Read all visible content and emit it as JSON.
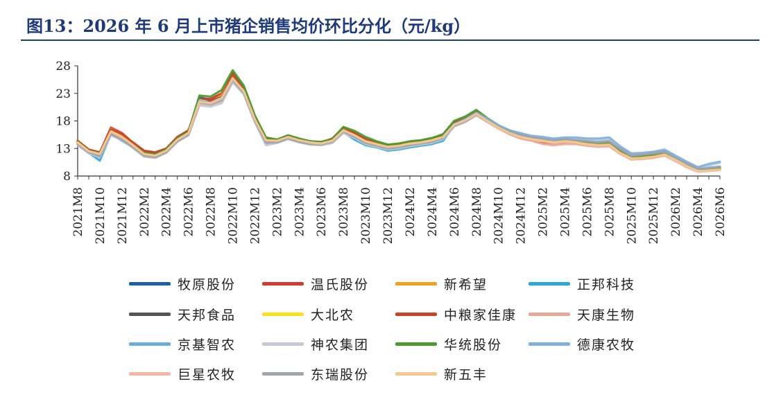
{
  "page": {
    "title": "图13：2026 年 6 月上市猪企销售均价环比分化（元/kg）"
  },
  "chart_data": {
    "type": "line",
    "ylim": [
      8,
      28
    ],
    "yticks": [
      8,
      13,
      18,
      23,
      28
    ],
    "xticks": [
      "2021M8",
      "2021M10",
      "2021M12",
      "2022M2",
      "2022M4",
      "2022M6",
      "2022M8",
      "2022M10",
      "2022M12",
      "2023M2",
      "2023M4",
      "2023M6",
      "2023M8",
      "2023M10",
      "2023M12",
      "2024M2",
      "2024M4",
      "2024M6",
      "2024M8",
      "2024M10",
      "2024M12",
      "2025M2",
      "2025M4",
      "2025M6",
      "2025M8",
      "2025M10",
      "2025M12",
      "2026M2",
      "2026M4",
      "2026M6"
    ],
    "x": [
      "2021M8",
      "2021M9",
      "2021M10",
      "2021M11",
      "2021M12",
      "2022M1",
      "2022M2",
      "2022M3",
      "2022M4",
      "2022M5",
      "2022M6",
      "2022M7",
      "2022M8",
      "2022M9",
      "2022M10",
      "2022M11",
      "2022M12",
      "2023M1",
      "2023M2",
      "2023M3",
      "2023M4",
      "2023M5",
      "2023M6",
      "2023M7",
      "2023M8",
      "2023M9",
      "2023M10",
      "2023M11",
      "2023M12",
      "2024M1",
      "2024M2",
      "2024M3",
      "2024M4",
      "2024M5",
      "2024M6",
      "2024M7",
      "2024M8",
      "2024M9",
      "2024M10",
      "2024M11",
      "2024M12",
      "2025M1",
      "2025M2",
      "2025M3",
      "2025M4",
      "2025M5",
      "2025M6",
      "2025M7",
      "2025M8",
      "2025M9",
      "2025M10",
      "2025M11",
      "2025M12",
      "2026M1",
      "2026M2",
      "2026M3",
      "2026M4",
      "2026M5",
      "2026M6"
    ],
    "series": [
      {
        "name": "牧原股份",
        "color": "#1f5fa8",
        "values": [
          14.2,
          12.6,
          12.0,
          16.2,
          15.2,
          13.6,
          12.2,
          12.0,
          12.8,
          14.8,
          16.0,
          22.3,
          21.8,
          22.8,
          26.6,
          23.8,
          18.6,
          14.8,
          14.5,
          15.2,
          14.6,
          14.2,
          14.1,
          14.6,
          16.6,
          15.0,
          13.9,
          13.6,
          13.0,
          13.1,
          13.6,
          13.9,
          14.3,
          15.0,
          17.6,
          18.4,
          19.6,
          18.4,
          17.2,
          16.2,
          15.6,
          15.0,
          14.8,
          14.5,
          14.8,
          14.6,
          14.2,
          14.0,
          14.2,
          12.8,
          11.6,
          11.8,
          11.9,
          12.4,
          11.2,
          10.2,
          9.0,
          9.2,
          9.4
        ]
      },
      {
        "name": "温氏股份",
        "color": "#d63a2f",
        "values": [
          14.3,
          12.7,
          12.2,
          16.8,
          15.8,
          14.0,
          12.5,
          12.2,
          12.9,
          15.0,
          16.2,
          22.0,
          22.0,
          23.0,
          26.8,
          24.0,
          18.8,
          14.9,
          14.6,
          15.3,
          14.7,
          14.2,
          14.1,
          14.8,
          16.8,
          15.9,
          14.8,
          14.1,
          13.5,
          13.7,
          14.1,
          14.3,
          14.7,
          15.4,
          17.8,
          18.6,
          19.8,
          18.3,
          17.0,
          16.0,
          15.2,
          14.8,
          14.6,
          14.3,
          14.5,
          14.3,
          14.0,
          13.9,
          14.0,
          12.6,
          11.5,
          11.6,
          11.8,
          12.2,
          11.1,
          10.0,
          9.1,
          9.1,
          9.3
        ]
      },
      {
        "name": "新希望",
        "color": "#f0a11f",
        "values": [
          14.0,
          12.4,
          11.9,
          16.6,
          15.5,
          13.8,
          12.1,
          11.8,
          12.6,
          14.6,
          15.8,
          21.6,
          21.5,
          22.6,
          26.0,
          23.5,
          18.5,
          14.6,
          14.4,
          15.1,
          14.5,
          14.1,
          14.0,
          14.5,
          16.5,
          15.6,
          14.5,
          13.9,
          13.4,
          13.6,
          14.0,
          14.2,
          14.6,
          15.3,
          17.4,
          18.2,
          19.4,
          18.1,
          16.8,
          15.8,
          15.1,
          14.6,
          14.4,
          14.1,
          14.3,
          14.1,
          13.8,
          13.7,
          13.8,
          12.4,
          11.3,
          11.5,
          11.6,
          12.0,
          11.0,
          9.9,
          8.9,
          9.0,
          9.2
        ]
      },
      {
        "name": "正邦科技",
        "color": "#29a9d8",
        "values": [
          13.8,
          12.2,
          10.8,
          15.6,
          14.4,
          13.2,
          11.8,
          11.5,
          12.4,
          14.4,
          15.6,
          21.8,
          21.2,
          22.0,
          25.6,
          23.2,
          18.0,
          13.8,
          14.2,
          14.9,
          14.3,
          13.9,
          13.8,
          14.2,
          16.0,
          14.6,
          13.6,
          13.2,
          12.6,
          12.8,
          13.2,
          13.5,
          13.8,
          14.4,
          17.2,
          18.0,
          19.2,
          18.0,
          16.9,
          15.9,
          15.2,
          14.8,
          14.5,
          14.2,
          14.4,
          14.2,
          13.9,
          13.7,
          13.9,
          12.5,
          11.4,
          11.5,
          11.7,
          12.1,
          11.0,
          9.9,
          8.9,
          9.0,
          9.2
        ]
      },
      {
        "name": "天邦食品",
        "color": "#555555",
        "values": [
          14.1,
          12.5,
          11.8,
          15.9,
          14.9,
          13.5,
          12.0,
          11.7,
          12.5,
          14.5,
          15.7,
          21.9,
          21.4,
          22.5,
          26.2,
          23.6,
          18.4,
          14.5,
          14.3,
          15.0,
          14.4,
          14.0,
          13.9,
          14.4,
          16.4,
          15.4,
          14.3,
          13.8,
          13.2,
          13.4,
          13.8,
          14.0,
          14.4,
          15.1,
          17.5,
          18.3,
          19.5,
          18.2,
          17.0,
          16.0,
          15.3,
          14.8,
          14.6,
          14.3,
          14.5,
          14.3,
          14.0,
          13.8,
          14.0,
          12.6,
          11.4,
          11.6,
          11.8,
          12.2,
          11.1,
          10.0,
          9.0,
          9.1,
          9.3
        ]
      },
      {
        "name": "大北农",
        "color": "#f7e21b",
        "values": [
          14.0,
          12.4,
          11.7,
          16.4,
          15.3,
          13.7,
          12.1,
          11.8,
          12.6,
          14.6,
          15.8,
          21.8,
          21.4,
          22.6,
          26.3,
          23.7,
          18.5,
          14.6,
          14.4,
          15.1,
          14.5,
          14.1,
          14.0,
          14.5,
          16.5,
          15.5,
          14.4,
          13.9,
          13.3,
          13.5,
          13.9,
          14.1,
          14.5,
          15.2,
          17.5,
          18.3,
          19.5,
          18.2,
          16.9,
          15.9,
          15.2,
          14.7,
          14.5,
          14.2,
          14.4,
          14.2,
          13.9,
          13.7,
          13.9,
          12.5,
          11.3,
          11.5,
          11.7,
          12.1,
          11.0,
          9.9,
          8.9,
          9.0,
          9.2
        ]
      },
      {
        "name": "中粮家佳康",
        "color": "#c8452a",
        "values": [
          14.4,
          12.8,
          12.3,
          16.5,
          15.6,
          14.1,
          12.6,
          12.3,
          13.0,
          15.1,
          16.3,
          21.2,
          21.6,
          22.4,
          26.4,
          23.9,
          18.7,
          14.8,
          14.6,
          15.3,
          14.7,
          14.3,
          14.1,
          14.7,
          16.7,
          15.8,
          14.7,
          14.1,
          13.6,
          13.8,
          14.2,
          14.4,
          14.8,
          15.5,
          17.7,
          18.5,
          19.7,
          18.2,
          16.7,
          15.6,
          14.9,
          14.5,
          14.1,
          13.9,
          14.1,
          14.0,
          13.7,
          13.6,
          13.7,
          12.3,
          11.2,
          11.3,
          11.5,
          11.9,
          10.9,
          9.8,
          8.9,
          9.0,
          9.2
        ]
      },
      {
        "name": "天康生物",
        "color": "#e8a896",
        "values": [
          13.9,
          12.3,
          11.8,
          15.8,
          14.8,
          13.4,
          11.6,
          11.4,
          12.3,
          14.3,
          15.5,
          21.0,
          20.8,
          21.4,
          25.2,
          23.0,
          18.2,
          14.3,
          14.2,
          14.9,
          14.3,
          13.9,
          13.8,
          14.2,
          16.1,
          15.2,
          14.1,
          13.6,
          13.1,
          13.3,
          13.6,
          13.9,
          14.2,
          14.9,
          17.0,
          17.9,
          19.0,
          17.8,
          16.6,
          15.6,
          14.8,
          14.4,
          13.8,
          13.6,
          13.8,
          13.8,
          13.5,
          13.3,
          13.4,
          12.0,
          11.0,
          11.1,
          11.3,
          11.7,
          10.7,
          9.6,
          8.8,
          8.9,
          9.1
        ]
      },
      {
        "name": "京基智农",
        "color": "#6aaee0",
        "values": [
          13.7,
          12.2,
          11.5,
          15.6,
          14.7,
          13.3,
          11.9,
          11.6,
          12.4,
          14.4,
          15.6,
          21.5,
          21.1,
          21.9,
          25.4,
          23.1,
          18.0,
          14.0,
          14.1,
          14.8,
          14.2,
          13.8,
          13.7,
          14.1,
          16.0,
          15.0,
          13.9,
          13.4,
          12.9,
          13.1,
          13.5,
          13.8,
          14.1,
          14.8,
          17.3,
          18.1,
          19.3,
          18.1,
          17.0,
          16.1,
          15.6,
          15.1,
          14.9,
          14.6,
          14.8,
          14.7,
          14.5,
          14.4,
          14.5,
          13.0,
          11.9,
          12.0,
          12.2,
          12.5,
          11.4,
          10.3,
          9.3,
          9.5,
          9.7
        ]
      },
      {
        "name": "神农集团",
        "color": "#c4c9d8",
        "values": [
          13.6,
          12.1,
          11.4,
          15.4,
          14.5,
          13.1,
          11.5,
          11.3,
          12.2,
          14.2,
          15.4,
          20.8,
          20.6,
          21.2,
          25.0,
          22.8,
          17.8,
          13.6,
          14.0,
          14.7,
          14.1,
          13.7,
          13.6,
          14.0,
          15.8,
          14.9,
          13.8,
          13.3,
          12.8,
          13.0,
          13.4,
          13.7,
          14.0,
          14.7,
          17.0,
          17.8,
          19.0,
          17.9,
          16.8,
          16.0,
          15.4,
          15.0,
          14.8,
          14.5,
          14.7,
          14.7,
          14.6,
          14.5,
          14.7,
          13.2,
          12.0,
          12.1,
          12.3,
          12.6,
          11.5,
          10.5,
          9.6,
          9.9,
          10.4
        ]
      },
      {
        "name": "华统股份",
        "color": "#4c9a2a",
        "values": [
          14.2,
          12.6,
          12.1,
          16.0,
          15.0,
          13.6,
          12.2,
          11.9,
          12.8,
          14.8,
          16.0,
          22.6,
          22.4,
          23.6,
          27.2,
          24.4,
          19.0,
          15.0,
          14.6,
          15.4,
          14.8,
          14.3,
          14.2,
          14.7,
          16.9,
          16.2,
          15.1,
          14.3,
          13.7,
          13.9,
          14.3,
          14.5,
          14.9,
          15.6,
          18.0,
          18.8,
          20.0,
          18.5,
          17.2,
          16.2,
          15.4,
          14.9,
          14.7,
          14.4,
          14.6,
          14.4,
          14.1,
          13.9,
          14.1,
          12.7,
          11.5,
          11.7,
          11.9,
          12.3,
          11.2,
          10.1,
          9.1,
          9.2,
          9.4
        ]
      },
      {
        "name": "德康农牧",
        "color": "#7fb0e0",
        "values": [
          13.9,
          12.4,
          11.8,
          15.7,
          14.8,
          13.4,
          11.9,
          11.6,
          12.5,
          14.5,
          15.7,
          21.7,
          21.3,
          22.2,
          25.8,
          23.4,
          18.3,
          14.3,
          14.3,
          15.0,
          14.4,
          14.0,
          13.9,
          14.4,
          16.3,
          15.3,
          14.2,
          13.7,
          13.2,
          13.4,
          13.8,
          14.0,
          14.4,
          15.1,
          17.4,
          18.3,
          19.5,
          18.4,
          17.2,
          16.3,
          15.8,
          15.3,
          15.1,
          14.8,
          15.0,
          15.0,
          14.8,
          14.8,
          15.0,
          13.4,
          12.1,
          12.2,
          12.4,
          12.8,
          11.7,
          10.6,
          9.6,
          10.2,
          10.6
        ]
      },
      {
        "name": "巨星农牧",
        "color": "#f0b8a0",
        "values": [
          14.0,
          12.5,
          11.9,
          15.9,
          15.0,
          13.5,
          11.8,
          11.6,
          12.4,
          14.4,
          15.6,
          21.3,
          21.0,
          21.8,
          25.4,
          23.2,
          18.2,
          14.4,
          14.3,
          15.0,
          14.4,
          14.0,
          13.9,
          14.3,
          16.2,
          15.3,
          14.2,
          13.7,
          13.2,
          13.4,
          13.8,
          14.0,
          14.4,
          15.0,
          17.2,
          18.0,
          19.2,
          17.9,
          16.7,
          15.7,
          15.0,
          14.6,
          14.3,
          14.0,
          14.2,
          14.1,
          13.7,
          13.5,
          13.6,
          12.1,
          11.1,
          11.2,
          11.4,
          11.8,
          10.8,
          9.7,
          8.8,
          8.9,
          9.1
        ]
      },
      {
        "name": "东瑞股份",
        "color": "#a0a4ac",
        "values": [
          13.8,
          12.3,
          11.6,
          15.6,
          14.6,
          13.2,
          11.7,
          11.4,
          12.3,
          14.3,
          15.5,
          21.4,
          21.0,
          21.8,
          25.4,
          23.1,
          18.0,
          14.1,
          14.1,
          14.8,
          14.2,
          13.8,
          13.7,
          14.2,
          16.1,
          15.1,
          14.0,
          13.5,
          13.0,
          13.2,
          13.6,
          13.9,
          14.2,
          14.9,
          17.1,
          17.9,
          19.2,
          18.0,
          16.9,
          15.9,
          15.4,
          15.0,
          14.7,
          14.4,
          14.6,
          14.5,
          14.3,
          14.1,
          14.3,
          12.9,
          11.7,
          11.9,
          12.1,
          12.4,
          11.3,
          10.2,
          9.3,
          9.4,
          9.7
        ]
      },
      {
        "name": "新五丰",
        "color": "#f5c890",
        "values": [
          14.1,
          12.5,
          12.0,
          16.1,
          15.1,
          13.6,
          12.0,
          11.7,
          12.6,
          14.6,
          15.8,
          21.5,
          21.2,
          22.1,
          25.7,
          23.4,
          18.3,
          14.5,
          14.4,
          15.1,
          14.5,
          14.1,
          13.9,
          14.4,
          16.3,
          15.4,
          14.3,
          13.8,
          13.3,
          13.5,
          13.9,
          14.1,
          14.5,
          15.1,
          17.3,
          18.1,
          19.3,
          18.0,
          16.8,
          15.8,
          15.1,
          14.7,
          14.4,
          14.1,
          14.3,
          14.1,
          13.8,
          13.6,
          13.7,
          12.2,
          11.2,
          11.3,
          11.5,
          11.9,
          10.9,
          9.8,
          8.9,
          9.0,
          9.2
        ]
      }
    ]
  }
}
